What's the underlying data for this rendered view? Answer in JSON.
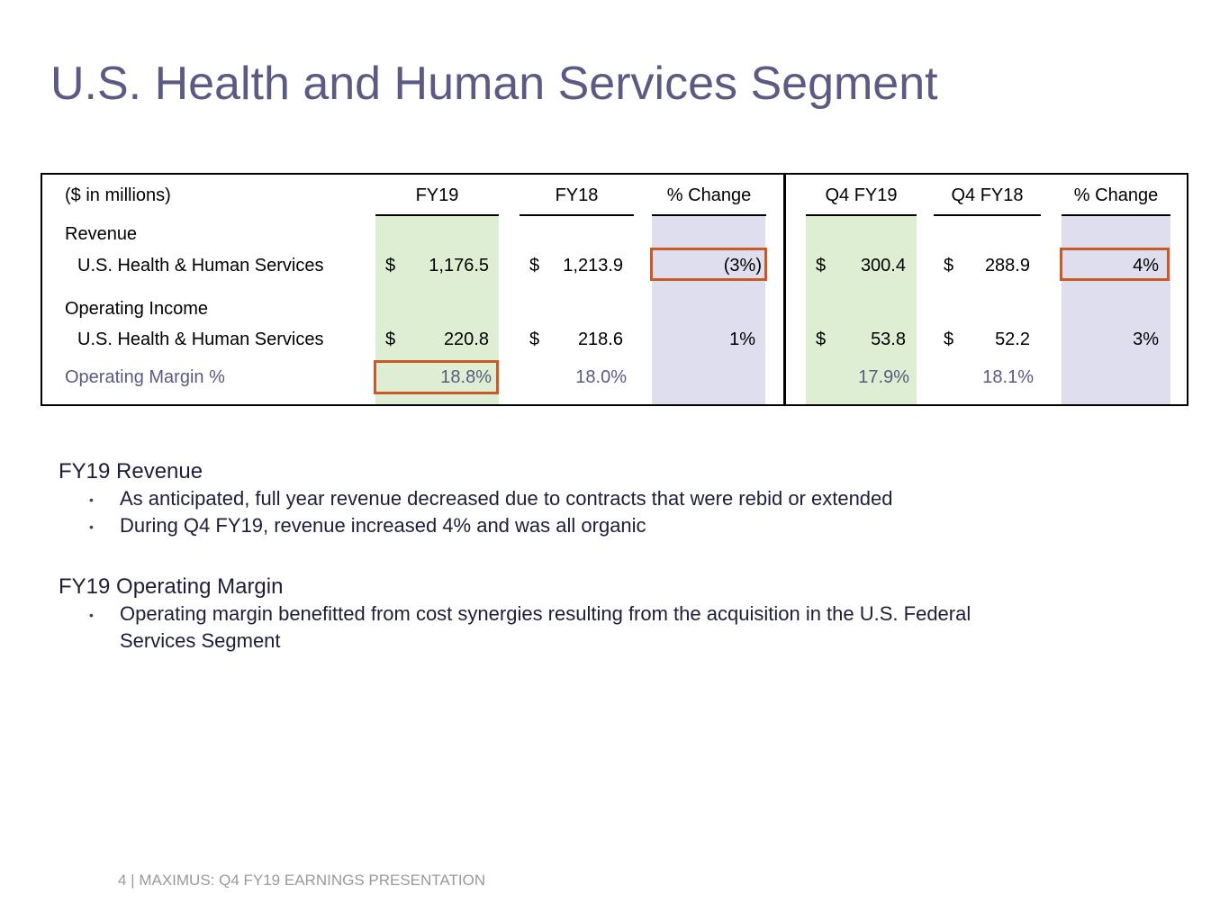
{
  "title": "U.S. Health and Human Services Segment",
  "table": {
    "unit_label": "($ in millions)",
    "headers": [
      "FY19",
      "FY18",
      "% Change",
      "Q4 FY19",
      "Q4 FY18",
      "% Change"
    ],
    "revenue": {
      "label": "Revenue",
      "row_label": "U.S. Health & Human Services",
      "currency": "$",
      "fy19": "1,176.5",
      "fy18": "1,213.9",
      "change": "(3%)",
      "q4fy19": "300.4",
      "q4fy18": "288.9",
      "q4change": "4%"
    },
    "operating_income": {
      "label": "Operating Income",
      "row_label": "U.S. Health & Human Services",
      "currency": "$",
      "fy19": "220.8",
      "fy18": "218.6",
      "change": "1%",
      "q4fy19": "53.8",
      "q4fy18": "52.2",
      "q4change": "3%"
    },
    "operating_margin": {
      "label": "Operating Margin %",
      "fy19": "18.8%",
      "fy18": "18.0%",
      "q4fy19": "17.9%",
      "q4fy18": "18.1%"
    }
  },
  "commentary": {
    "revenue_heading": "FY19 Revenue",
    "revenue_bullets": [
      "As anticipated, full year revenue decreased due to contracts that were rebid or extended",
      "During Q4 FY19, revenue increased 4% and was all organic"
    ],
    "margin_heading": "FY19 Operating Margin",
    "margin_bullet_lines": [
      "Operating margin benefitted from cost synergies resulting from the acquisition in the U.S. Federal",
      "Services Segment"
    ],
    "bullet_char": "•"
  },
  "footer": "4 | MAXIMUS: Q4 FY19 EARNINGS PRESENTATION",
  "colors": {
    "title": "#5a5a84",
    "highlight_border": "#c85a28",
    "green_column": "#ddeed3",
    "lavender_column": "#dedeee"
  }
}
